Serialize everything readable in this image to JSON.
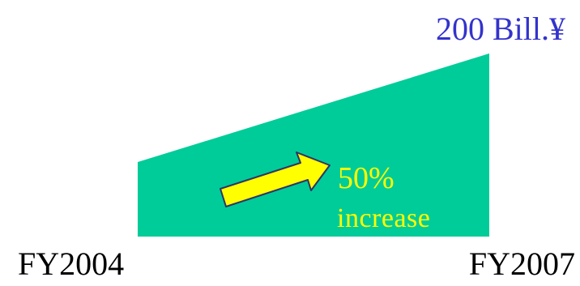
{
  "labels": {
    "top_value": "200 Bill.¥",
    "start_year": "FY2004",
    "end_year": "FY2007",
    "growth_percent": "50%",
    "growth_word": "increase"
  },
  "colors": {
    "wedge_fill": "#00cc99",
    "arrow_fill": "#ffff00",
    "arrow_stroke": "#333366",
    "top_value_text": "#3333cc",
    "growth_text": "#ffff00"
  },
  "icons": {
    "growth_arrow": "right-arrow-icon"
  }
}
